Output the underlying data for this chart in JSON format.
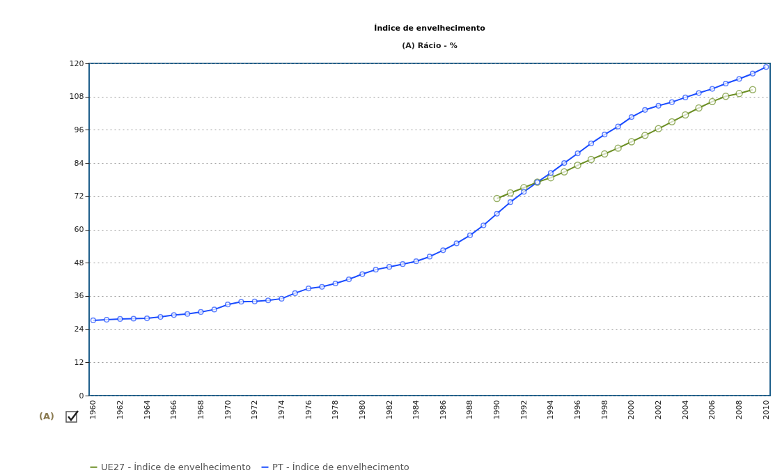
{
  "chart_data": {
    "type": "line",
    "title": "Índice de envelhecimento",
    "subtitle": "(A) Rácio - %",
    "xlim": [
      1959.7,
      2010.3
    ],
    "xticks": [
      1960,
      1962,
      1964,
      1966,
      1968,
      1970,
      1972,
      1974,
      1976,
      1978,
      1980,
      1982,
      1984,
      1986,
      1988,
      1990,
      1992,
      1994,
      1996,
      1998,
      2000,
      2002,
      2004,
      2006,
      2008,
      2010
    ],
    "ylim": [
      0,
      120
    ],
    "yticks": [
      0,
      12,
      24,
      36,
      48,
      60,
      72,
      84,
      96,
      108,
      120
    ],
    "grid": "y",
    "legend": "bottom",
    "marker": "circle",
    "line_style": "solid",
    "annotations": [
      "(A)"
    ],
    "series": [
      {
        "name": "UE27 - Índice de envelhecimento",
        "color": "#6b8e23",
        "x": [
          1990,
          1991,
          1992,
          1993,
          1994,
          1995,
          1996,
          1997,
          1998,
          1999,
          2000,
          2001,
          2002,
          2003,
          2004,
          2005,
          2006,
          2007,
          2008,
          2009
        ],
        "values": [
          71.2,
          73.2,
          75.1,
          77.1,
          78.7,
          80.8,
          83.2,
          85.3,
          87.3,
          89.4,
          91.7,
          94.0,
          96.4,
          98.9,
          101.4,
          103.9,
          106.2,
          108.1,
          109.1,
          110.5
        ]
      },
      {
        "name": "PT - Índice de envelhecimento",
        "color": "#1a4cff",
        "x": [
          1960,
          1961,
          1962,
          1963,
          1964,
          1965,
          1966,
          1967,
          1968,
          1969,
          1970,
          1971,
          1972,
          1973,
          1974,
          1975,
          1976,
          1977,
          1978,
          1979,
          1980,
          1981,
          1982,
          1983,
          1984,
          1985,
          1986,
          1987,
          1988,
          1989,
          1990,
          1991,
          1992,
          1993,
          1994,
          1995,
          1996,
          1997,
          1998,
          1999,
          2000,
          2001,
          2002,
          2003,
          2004,
          2005,
          2006,
          2007,
          2008,
          2009,
          2010
        ],
        "values": [
          27.2,
          27.4,
          27.7,
          27.8,
          27.9,
          28.4,
          29.1,
          29.5,
          30.2,
          31.1,
          32.9,
          33.9,
          34.0,
          34.4,
          35.0,
          37.0,
          38.7,
          39.3,
          40.5,
          42.0,
          43.9,
          45.5,
          46.5,
          47.5,
          48.5,
          50.2,
          52.5,
          55.0,
          57.9,
          61.5,
          65.7,
          69.9,
          73.6,
          77.1,
          80.4,
          84.0,
          87.5,
          91.1,
          94.3,
          97.2,
          100.6,
          103.2,
          104.7,
          106.0,
          107.7,
          109.3,
          110.8,
          112.7,
          114.4,
          116.3,
          118.7
        ]
      }
    ]
  }
}
